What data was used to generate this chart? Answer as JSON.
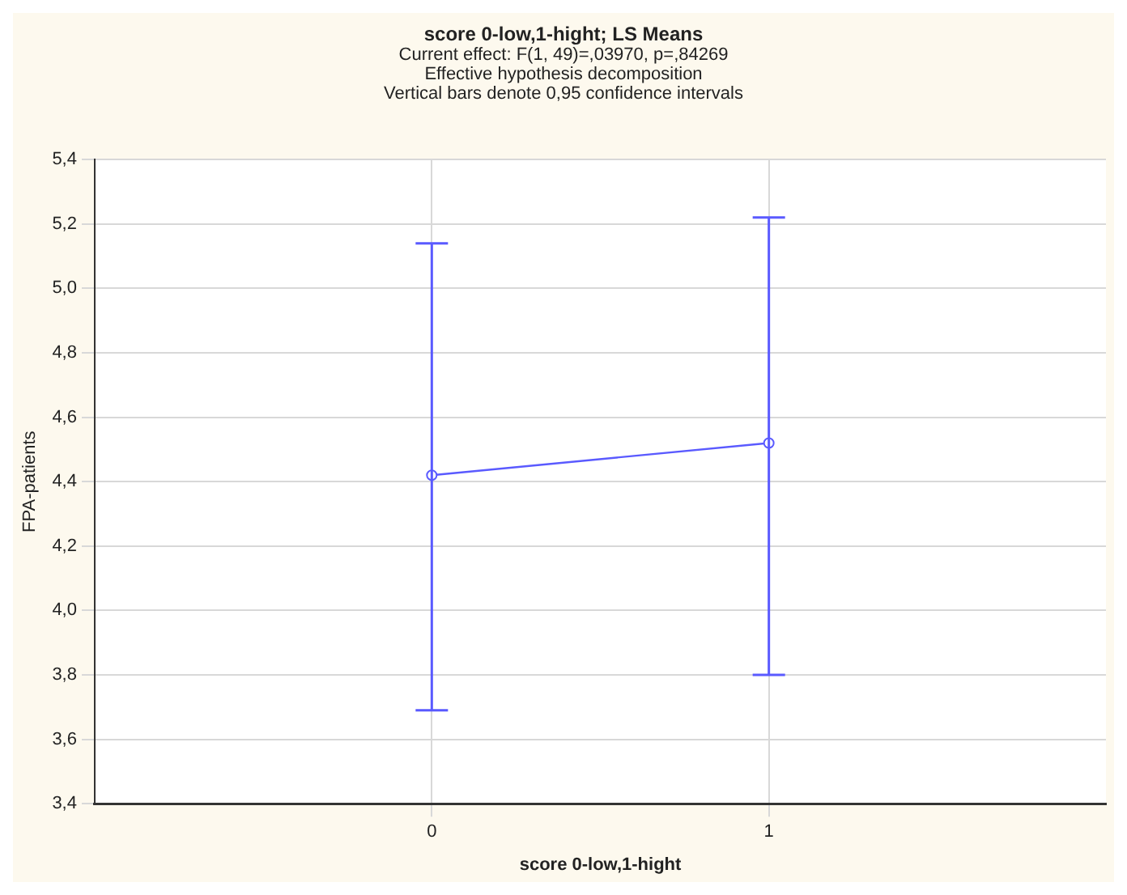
{
  "chart_data": {
    "type": "line",
    "title": "score 0-low,1-hight; LS Means",
    "subtitle": "Current effect: F(1, 49)=,03970, p=,84269",
    "annotations": [
      "Effective hypothesis decomposition",
      "Vertical bars denote 0,95 confidence intervals"
    ],
    "xlabel": "score 0-low,1-hight",
    "ylabel": "FPA-patients",
    "x": [
      0,
      1
    ],
    "xlim": [
      -1,
      2
    ],
    "xticks": [
      0,
      1
    ],
    "ylim": [
      3.4,
      5.4
    ],
    "yticks": [
      {
        "value": 3.4,
        "label": "3,4"
      },
      {
        "value": 3.6,
        "label": "3,6"
      },
      {
        "value": 3.8,
        "label": "3,8"
      },
      {
        "value": 4.0,
        "label": "4,0"
      },
      {
        "value": 4.2,
        "label": "4,2"
      },
      {
        "value": 4.4,
        "label": "4,4"
      },
      {
        "value": 4.6,
        "label": "4,6"
      },
      {
        "value": 4.8,
        "label": "4,8"
      },
      {
        "value": 5.0,
        "label": "5,0"
      },
      {
        "value": 5.2,
        "label": "5,2"
      },
      {
        "value": 5.4,
        "label": "5,4"
      }
    ],
    "series": [
      {
        "color": "#5a5aff",
        "values": [
          4.42,
          4.52
        ],
        "errors": [
          [
            3.69,
            5.14
          ],
          [
            3.8,
            5.22
          ]
        ]
      }
    ],
    "grid": true,
    "legend": false,
    "marker": "circle",
    "line_style": "solid"
  }
}
